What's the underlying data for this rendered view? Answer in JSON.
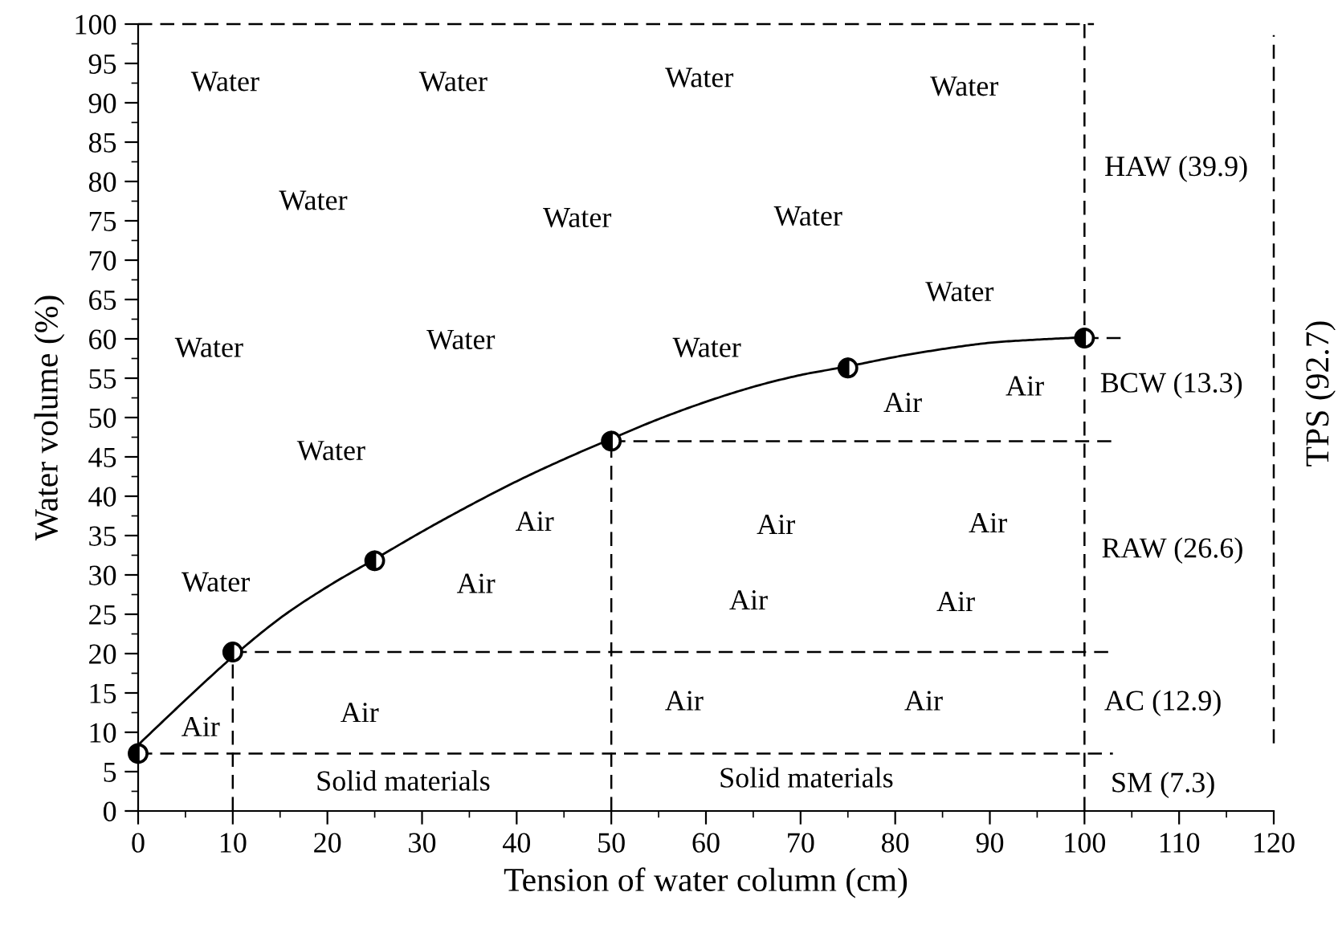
{
  "chart_data": {
    "type": "line",
    "xlabel": "Tension of water column (cm)",
    "ylabel": "Water volume (%)",
    "xlim": [
      0,
      120
    ],
    "xticks": [
      0,
      10,
      20,
      30,
      40,
      50,
      60,
      70,
      80,
      90,
      100,
      110,
      120
    ],
    "ylim": [
      0,
      100
    ],
    "yticks": [
      0,
      5,
      10,
      15,
      20,
      25,
      30,
      35,
      40,
      45,
      50,
      55,
      60,
      65,
      70,
      75,
      80,
      85,
      90,
      95,
      100
    ],
    "grid": false,
    "series": [
      {
        "line_style": "dashed",
        "color": "#000000",
        "x": [
          0,
          101
        ],
        "values": [
          100,
          100
        ]
      },
      {
        "line_style": "dashed",
        "color": "#000000",
        "x": [
          100,
          100
        ],
        "values": [
          0,
          100
        ]
      },
      {
        "line_style": "dashed",
        "color": "#000000",
        "x": [
          100,
          104
        ],
        "values": [
          60.1,
          60.1
        ]
      },
      {
        "line_style": "dashed",
        "color": "#000000",
        "x": [
          50,
          103
        ],
        "values": [
          47,
          47
        ]
      },
      {
        "line_style": "dashed",
        "color": "#000000",
        "x": [
          50,
          50
        ],
        "values": [
          0,
          47
        ]
      },
      {
        "line_style": "dashed",
        "color": "#000000",
        "x": [
          10,
          103
        ],
        "values": [
          20.2,
          20.2
        ]
      },
      {
        "line_style": "dashed",
        "color": "#000000",
        "x": [
          10,
          10
        ],
        "values": [
          0,
          20.2
        ]
      },
      {
        "line_style": "dashed",
        "color": "#000000",
        "x": [
          0,
          103
        ],
        "values": [
          7.3,
          7.3
        ]
      },
      {
        "line_style": "dashed",
        "color": "#000000",
        "x": [
          120,
          120
        ],
        "values": [
          8.6,
          98.6
        ]
      },
      {
        "line_style": "solid",
        "color": "#000000",
        "x": [
          0,
          5,
          10,
          15,
          20,
          25,
          30,
          35,
          40,
          45,
          50,
          55,
          60,
          65,
          70,
          75,
          80,
          85,
          90,
          95,
          100
        ],
        "values": [
          8.4,
          14.1,
          19.6,
          24.5,
          28.5,
          32,
          35.5,
          38.8,
          41.9,
          44.7,
          47.3,
          49.8,
          52,
          53.9,
          55.4,
          56.5,
          57.7,
          58.7,
          59.5,
          59.9,
          60.2
        ]
      },
      {
        "type": "scatter",
        "marker": "circle",
        "color": "#000000",
        "x": [
          0,
          10,
          25,
          50,
          75,
          100
        ],
        "values": [
          7.3,
          20.2,
          31.8,
          47,
          56.3,
          60.1
        ]
      }
    ],
    "annotations": [
      "Water",
      "Water",
      "Water",
      "Water",
      "Water",
      "Water",
      "Water",
      "Water",
      "Water",
      "Water",
      "Water",
      "Water",
      "Water",
      "Air",
      "Air",
      "Air",
      "Air",
      "Air",
      "Air",
      "Air",
      "Air",
      "Air",
      "Air",
      "Air",
      "Air",
      "Solid materials",
      "Solid materials",
      "HAW (39.9)",
      "BCW (13.3)",
      "RAW (26.6)",
      "AC (12.9)",
      "SM (7.3)",
      "TPS (92.7)"
    ]
  }
}
